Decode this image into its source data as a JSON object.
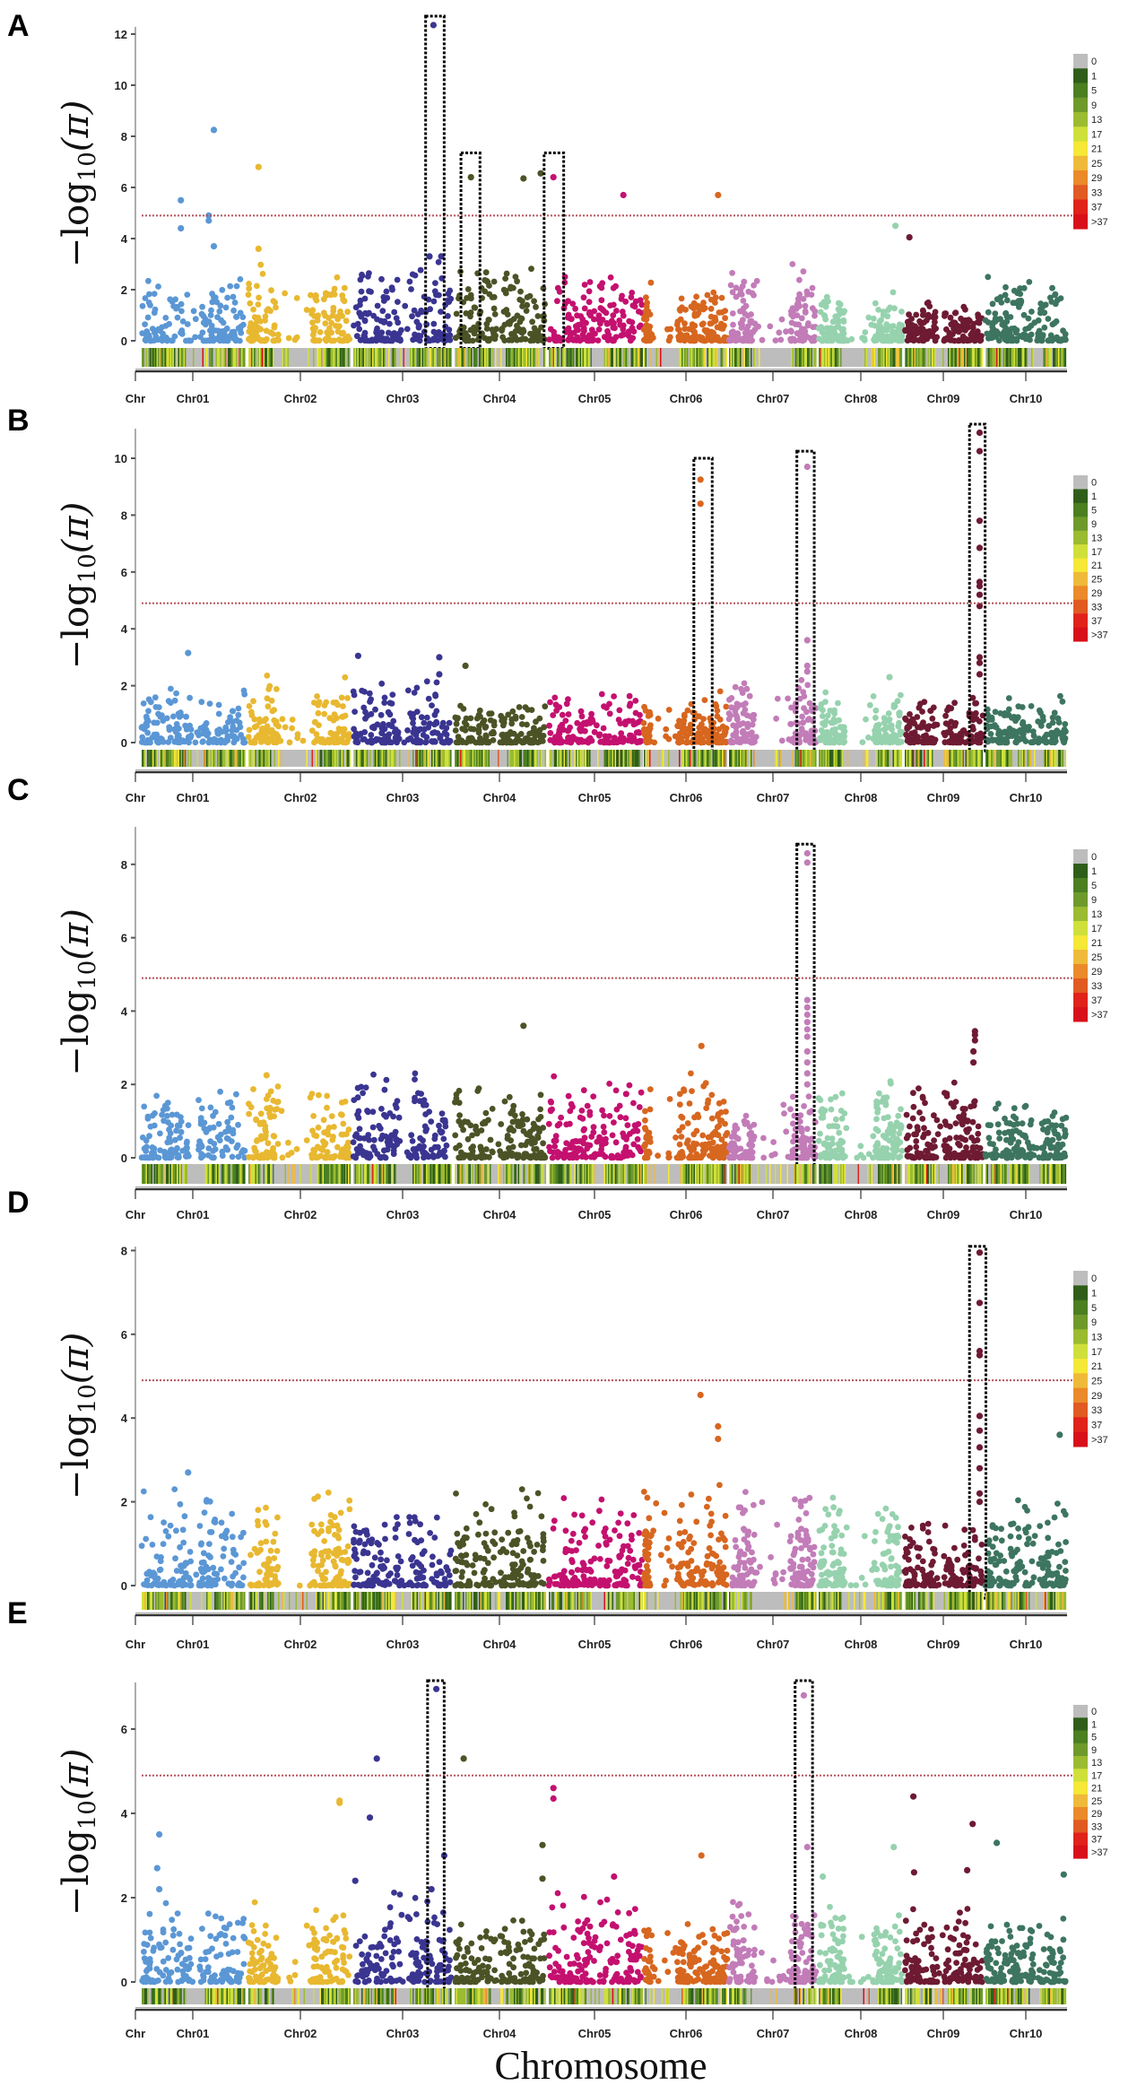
{
  "chart_data": {
    "type": "scatter",
    "subtype": "manhattan",
    "xlabel": "Chromosome",
    "ylabel": {
      "prefix": "−log",
      "sub": "10",
      "suffix": "(π)"
    },
    "x_tick_labels": [
      "Chr",
      "Chr01",
      "Chr02",
      "Chr03",
      "Chr04",
      "Chr05",
      "Chr06",
      "Chr07",
      "Chr08",
      "Chr09",
      "Chr10"
    ],
    "chromosomes": [
      "Chr01",
      "Chr02",
      "Chr03",
      "Chr04",
      "Chr05",
      "Chr06",
      "Chr07",
      "Chr08",
      "Chr09",
      "Chr10"
    ],
    "chromosome_colors": [
      "#5b97d5",
      "#e8b831",
      "#3a3591",
      "#4b5326",
      "#c4106f",
      "#d7661f",
      "#c27cb8",
      "#96d2ae",
      "#6e1a33",
      "#3d7560"
    ],
    "threshold_color": "#b5525a",
    "legend": {
      "title": "",
      "placement": "right",
      "labels": [
        "0",
        "1",
        "5",
        "9",
        "13",
        "17",
        "21",
        "25",
        "29",
        "33",
        "37",
        ">37"
      ],
      "colors": [
        "#bdbdbd",
        "#2f5e1a",
        "#4a7f22",
        "#6e9a2c",
        "#9bbb30",
        "#cfe03a",
        "#f5e836",
        "#efb93a",
        "#ea8a2a",
        "#e05a22",
        "#e0221a",
        "#d8101a"
      ]
    },
    "note_positions": "pos = relative position within chromosome (0-1)",
    "panels": [
      {
        "label": "A",
        "ylim": [
          0,
          12.7
        ],
        "yticks": [
          0,
          2,
          4,
          6,
          8,
          10,
          12
        ],
        "threshold": 4.9,
        "bg_max": [
          2.6,
          3.1,
          3.2,
          3.3,
          2.9,
          2.4,
          3.0,
          1.9,
          1.6,
          2.5
        ],
        "highlight_boxes": [
          {
            "chr": 3,
            "from": 0.74,
            "to": 0.93,
            "ymax": 12.7
          },
          {
            "chr": 4,
            "from": 0.07,
            "to": 0.28,
            "ymax": 7.35
          },
          {
            "chr": 5,
            "from": -0.05,
            "to": 0.16,
            "ymax": 7.35
          }
        ],
        "peaks": [
          {
            "chr": 1,
            "pos": 0.7,
            "y": 8.25
          },
          {
            "chr": 1,
            "pos": 0.38,
            "y": 5.5
          },
          {
            "chr": 1,
            "pos": 0.65,
            "y": 4.9
          },
          {
            "chr": 1,
            "pos": 0.65,
            "y": 4.7
          },
          {
            "chr": 1,
            "pos": 0.38,
            "y": 4.4
          },
          {
            "chr": 1,
            "pos": 0.7,
            "y": 3.7
          },
          {
            "chr": 2,
            "pos": 0.1,
            "y": 6.8
          },
          {
            "chr": 2,
            "pos": 0.1,
            "y": 3.6
          },
          {
            "chr": 3,
            "pos": 0.82,
            "y": 12.35
          },
          {
            "chr": 3,
            "pos": 0.78,
            "y": 3.3
          },
          {
            "chr": 3,
            "pos": 0.9,
            "y": 3.3
          },
          {
            "chr": 3,
            "pos": 0.85,
            "y": 1.8
          },
          {
            "chr": 4,
            "pos": 0.18,
            "y": 6.4
          },
          {
            "chr": 4,
            "pos": 0.76,
            "y": 6.35
          },
          {
            "chr": 4,
            "pos": 0.95,
            "y": 6.55
          },
          {
            "chr": 5,
            "pos": 0.05,
            "y": 6.4
          },
          {
            "chr": 5,
            "pos": 0.8,
            "y": 5.7
          },
          {
            "chr": 6,
            "pos": 0.89,
            "y": 5.7
          },
          {
            "chr": 8,
            "pos": 0.92,
            "y": 4.5
          },
          {
            "chr": 9,
            "pos": 0.06,
            "y": 4.05
          }
        ]
      },
      {
        "label": "B",
        "ylim": [
          0,
          11.2
        ],
        "yticks": [
          0,
          2,
          4,
          6,
          8,
          10
        ],
        "threshold": 4.9,
        "bg_max": [
          2.0,
          2.4,
          2.5,
          1.5,
          1.8,
          1.8,
          2.2,
          1.9,
          1.7,
          1.8
        ],
        "highlight_boxes": [
          {
            "chr": 6,
            "from": 0.6,
            "to": 0.82,
            "ymax": 10.0
          },
          {
            "chr": 7,
            "from": 0.78,
            "to": 0.98,
            "ymax": 10.25
          },
          {
            "chr": 9,
            "from": 0.83,
            "to": 1.03,
            "ymax": 11.2
          }
        ],
        "peaks": [
          {
            "chr": 1,
            "pos": 0.45,
            "y": 3.15
          },
          {
            "chr": 3,
            "pos": 0.05,
            "y": 3.05
          },
          {
            "chr": 3,
            "pos": 0.88,
            "y": 3.0
          },
          {
            "chr": 3,
            "pos": 0.88,
            "y": 2.4
          },
          {
            "chr": 4,
            "pos": 0.12,
            "y": 2.7
          },
          {
            "chr": 6,
            "pos": 0.68,
            "y": 9.25
          },
          {
            "chr": 6,
            "pos": 0.68,
            "y": 8.4
          },
          {
            "chr": 7,
            "pos": 0.9,
            "y": 9.7
          },
          {
            "chr": 7,
            "pos": 0.9,
            "y": 3.6
          },
          {
            "chr": 7,
            "pos": 0.9,
            "y": 2.7
          },
          {
            "chr": 7,
            "pos": 0.9,
            "y": 2.5
          },
          {
            "chr": 8,
            "pos": 0.85,
            "y": 2.3
          },
          {
            "chr": 9,
            "pos": 0.96,
            "y": 10.9
          },
          {
            "chr": 9,
            "pos": 0.96,
            "y": 10.25
          },
          {
            "chr": 9,
            "pos": 0.96,
            "y": 7.8
          },
          {
            "chr": 9,
            "pos": 0.96,
            "y": 6.85
          },
          {
            "chr": 9,
            "pos": 0.96,
            "y": 5.65
          },
          {
            "chr": 9,
            "pos": 0.96,
            "y": 5.5
          },
          {
            "chr": 9,
            "pos": 0.96,
            "y": 5.2
          },
          {
            "chr": 9,
            "pos": 0.96,
            "y": 4.8
          },
          {
            "chr": 9,
            "pos": 0.96,
            "y": 3.0
          },
          {
            "chr": 9,
            "pos": 0.96,
            "y": 2.8
          },
          {
            "chr": 9,
            "pos": 0.96,
            "y": 2.4
          }
        ]
      },
      {
        "label": "C",
        "ylim": [
          0,
          8.7
        ],
        "yticks": [
          0,
          2,
          4,
          6,
          8
        ],
        "threshold": 4.9,
        "bg_max": [
          1.9,
          2.2,
          2.3,
          2.0,
          2.3,
          2.3,
          1.7,
          2.3,
          2.3,
          1.7
        ],
        "highlight_boxes": [
          {
            "chr": 7,
            "from": 0.78,
            "to": 0.98,
            "ymax": 8.55
          }
        ],
        "peaks": [
          {
            "chr": 2,
            "pos": 0.18,
            "y": 2.25
          },
          {
            "chr": 4,
            "pos": 0.76,
            "y": 3.6
          },
          {
            "chr": 6,
            "pos": 0.69,
            "y": 3.05
          },
          {
            "chr": 7,
            "pos": 0.9,
            "y": 8.3
          },
          {
            "chr": 7,
            "pos": 0.9,
            "y": 8.05
          },
          {
            "chr": 7,
            "pos": 0.9,
            "y": 4.3
          },
          {
            "chr": 7,
            "pos": 0.9,
            "y": 4.1
          },
          {
            "chr": 7,
            "pos": 0.9,
            "y": 3.9
          },
          {
            "chr": 7,
            "pos": 0.9,
            "y": 3.7
          },
          {
            "chr": 7,
            "pos": 0.9,
            "y": 3.5
          },
          {
            "chr": 7,
            "pos": 0.9,
            "y": 3.3
          },
          {
            "chr": 7,
            "pos": 0.9,
            "y": 2.9
          },
          {
            "chr": 7,
            "pos": 0.9,
            "y": 2.6
          },
          {
            "chr": 7,
            "pos": 0.9,
            "y": 2.3
          },
          {
            "chr": 7,
            "pos": 0.9,
            "y": 2.0
          },
          {
            "chr": 9,
            "pos": 0.9,
            "y": 3.45
          },
          {
            "chr": 9,
            "pos": 0.9,
            "y": 3.35
          },
          {
            "chr": 9,
            "pos": 0.9,
            "y": 3.2
          },
          {
            "chr": 9,
            "pos": 0.88,
            "y": 2.9
          },
          {
            "chr": 9,
            "pos": 0.88,
            "y": 2.6
          }
        ]
      },
      {
        "label": "D",
        "ylim": [
          0,
          8.1
        ],
        "yticks": [
          0,
          2,
          4,
          6,
          8
        ],
        "threshold": 4.9,
        "bg_max": [
          2.3,
          2.4,
          2.0,
          2.3,
          2.3,
          2.4,
          2.6,
          2.3,
          1.7,
          2.1
        ],
        "highlight_boxes": [
          {
            "chr": 9,
            "from": 0.83,
            "to": 1.04,
            "ymax": 8.1
          }
        ],
        "peaks": [
          {
            "chr": 1,
            "pos": 0.45,
            "y": 2.7
          },
          {
            "chr": 6,
            "pos": 0.68,
            "y": 4.55
          },
          {
            "chr": 6,
            "pos": 0.89,
            "y": 3.8
          },
          {
            "chr": 6,
            "pos": 0.89,
            "y": 3.5
          },
          {
            "chr": 9,
            "pos": 0.96,
            "y": 7.95
          },
          {
            "chr": 9,
            "pos": 0.96,
            "y": 6.75
          },
          {
            "chr": 9,
            "pos": 0.96,
            "y": 5.6
          },
          {
            "chr": 9,
            "pos": 0.96,
            "y": 5.5
          },
          {
            "chr": 9,
            "pos": 0.96,
            "y": 4.05
          },
          {
            "chr": 9,
            "pos": 0.96,
            "y": 3.7
          },
          {
            "chr": 9,
            "pos": 0.96,
            "y": 3.3
          },
          {
            "chr": 9,
            "pos": 0.96,
            "y": 2.8
          },
          {
            "chr": 9,
            "pos": 0.96,
            "y": 2.2
          },
          {
            "chr": 9,
            "pos": 0.96,
            "y": 2.0
          },
          {
            "chr": 10,
            "pos": 0.92,
            "y": 3.6
          }
        ]
      },
      {
        "label": "E",
        "ylim": [
          0,
          7.15
        ],
        "yticks": [
          0,
          2,
          4,
          6
        ],
        "threshold": 4.9,
        "bg_max": [
          2.0,
          2.0,
          2.2,
          1.6,
          2.4,
          1.5,
          2.2,
          2.0,
          1.8,
          1.6
        ],
        "highlight_boxes": [
          {
            "chr": 3,
            "from": 0.76,
            "to": 0.93,
            "ymax": 7.15
          },
          {
            "chr": 7,
            "from": 0.76,
            "to": 0.96,
            "ymax": 7.15
          }
        ],
        "peaks": [
          {
            "chr": 1,
            "pos": 0.17,
            "y": 3.5
          },
          {
            "chr": 1,
            "pos": 0.15,
            "y": 2.7
          },
          {
            "chr": 1,
            "pos": 0.17,
            "y": 2.2
          },
          {
            "chr": 2,
            "pos": 0.9,
            "y": 4.3
          },
          {
            "chr": 2,
            "pos": 0.9,
            "y": 4.25
          },
          {
            "chr": 3,
            "pos": 0.24,
            "y": 5.3
          },
          {
            "chr": 3,
            "pos": 0.17,
            "y": 3.9
          },
          {
            "chr": 3,
            "pos": 0.02,
            "y": 2.4
          },
          {
            "chr": 3,
            "pos": 0.85,
            "y": 6.95
          },
          {
            "chr": 3,
            "pos": 0.93,
            "y": 3.0
          },
          {
            "chr": 3,
            "pos": 0.8,
            "y": 2.2
          },
          {
            "chr": 4,
            "pos": 0.1,
            "y": 5.3
          },
          {
            "chr": 4,
            "pos": 0.97,
            "y": 3.25
          },
          {
            "chr": 4,
            "pos": 0.97,
            "y": 2.45
          },
          {
            "chr": 5,
            "pos": 0.05,
            "y": 4.6
          },
          {
            "chr": 5,
            "pos": 0.05,
            "y": 4.35
          },
          {
            "chr": 5,
            "pos": 0.7,
            "y": 2.5
          },
          {
            "chr": 6,
            "pos": 0.69,
            "y": 3.0
          },
          {
            "chr": 7,
            "pos": 0.86,
            "y": 6.8
          },
          {
            "chr": 7,
            "pos": 0.9,
            "y": 3.2
          },
          {
            "chr": 8,
            "pos": 0.9,
            "y": 3.2
          },
          {
            "chr": 8,
            "pos": 0.05,
            "y": 2.5
          },
          {
            "chr": 9,
            "pos": 0.11,
            "y": 4.4
          },
          {
            "chr": 9,
            "pos": 0.87,
            "y": 3.75
          },
          {
            "chr": 9,
            "pos": 0.8,
            "y": 2.65
          },
          {
            "chr": 9,
            "pos": 0.12,
            "y": 2.6
          },
          {
            "chr": 10,
            "pos": 0.14,
            "y": 3.3
          },
          {
            "chr": 10,
            "pos": 0.97,
            "y": 2.55
          }
        ]
      }
    ]
  }
}
